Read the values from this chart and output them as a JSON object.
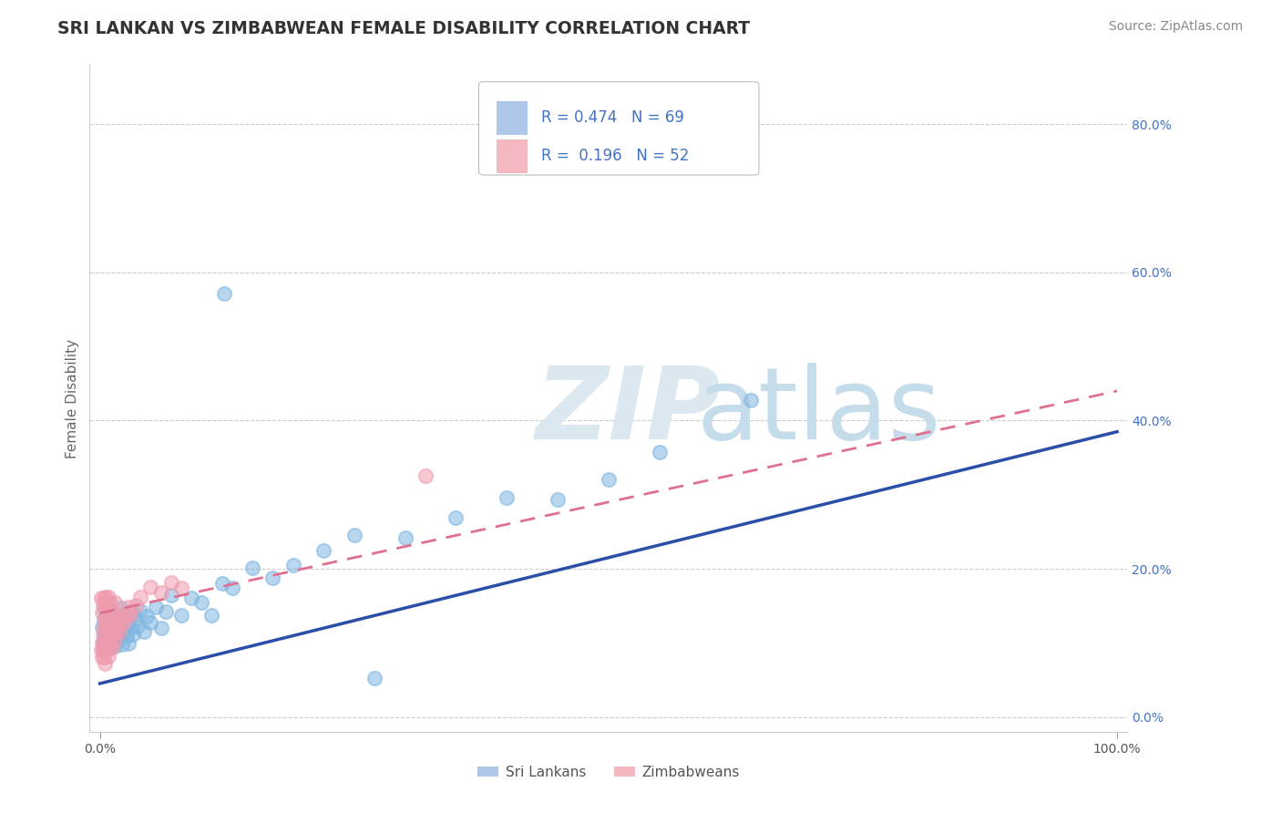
{
  "title": "SRI LANKAN VS ZIMBABWEAN FEMALE DISABILITY CORRELATION CHART",
  "source": "Source: ZipAtlas.com",
  "ylabel": "Female Disability",
  "legend1_color": "#aec6e8",
  "legend2_color": "#f4b8c1",
  "dot_color_sri": "#7eb5e0",
  "dot_color_zim": "#f09bae",
  "line_color_sri": "#2b4fa8",
  "line_color_zim": "#e07090",
  "sri_lankans_label": "Sri Lankans",
  "zimbabweans_label": "Zimbabweans",
  "background_color": "#ffffff",
  "title_color": "#333333",
  "legend_text_color": "#4472c4",
  "R_sri": 0.474,
  "N_sri": 69,
  "R_zim": 0.196,
  "N_zim": 52,
  "ylim_min": -0.02,
  "ylim_max": 0.88,
  "xlim_min": -0.01,
  "xlim_max": 1.01,
  "ytick_vals": [
    0.0,
    0.2,
    0.4,
    0.6,
    0.8
  ],
  "ytick_labels": [
    "0.0%",
    "20.0%",
    "40.0%",
    "60.0%",
    "80.0%"
  ],
  "xtick_vals": [
    0.0,
    1.0
  ],
  "xtick_labels": [
    "0.0%",
    "100.0%"
  ],
  "sri_line_x0": 0.0,
  "sri_line_x1": 1.0,
  "sri_line_y0": 0.045,
  "sri_line_y1": 0.385,
  "zim_line_x0": 0.0,
  "zim_line_x1": 1.0,
  "zim_line_y0": 0.14,
  "zim_line_y1": 0.44
}
